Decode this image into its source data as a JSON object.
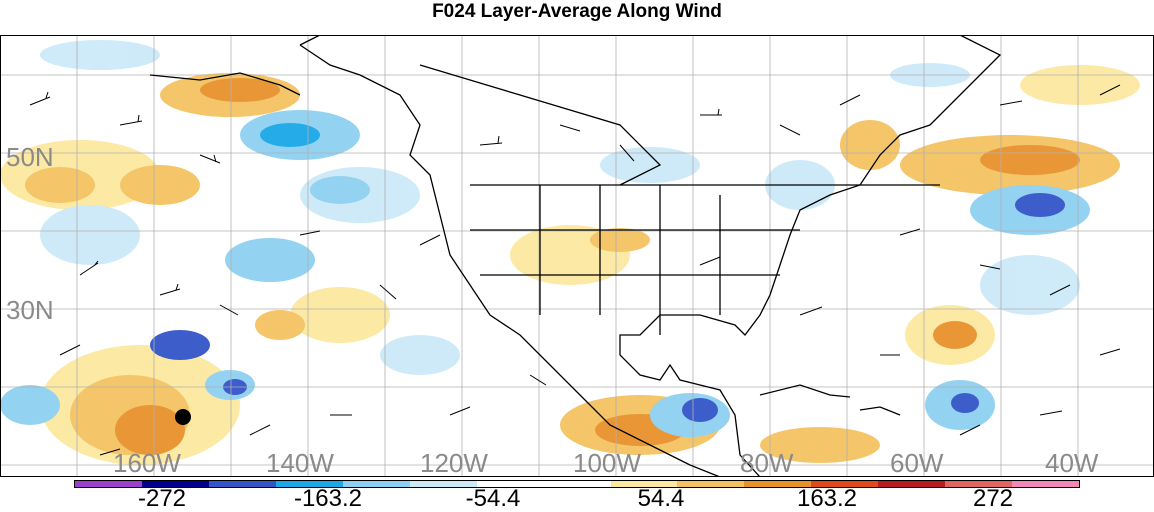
{
  "title": "F024 Layer-Average Along Wind",
  "map": {
    "lat_labels": [
      "50N",
      "30N"
    ],
    "lon_labels": [
      "160W",
      "140W",
      "120W",
      "100W",
      "80W",
      "60W",
      "40W"
    ],
    "label_color": "#8a8a8a"
  },
  "colorbar": {
    "colors": [
      "#9b3fcf",
      "#00008b",
      "#3355c9",
      "#1ba7e8",
      "#8fd0f2",
      "#cce9f8",
      "#ffffff",
      "#ffffff",
      "#fce8a0",
      "#f4c262",
      "#e8922c",
      "#e0491c",
      "#b81c1c",
      "#e06666",
      "#f288b8"
    ],
    "labels": [
      "-272",
      "-163.2",
      "-54.4",
      "54.4",
      "163.2",
      "272"
    ]
  }
}
